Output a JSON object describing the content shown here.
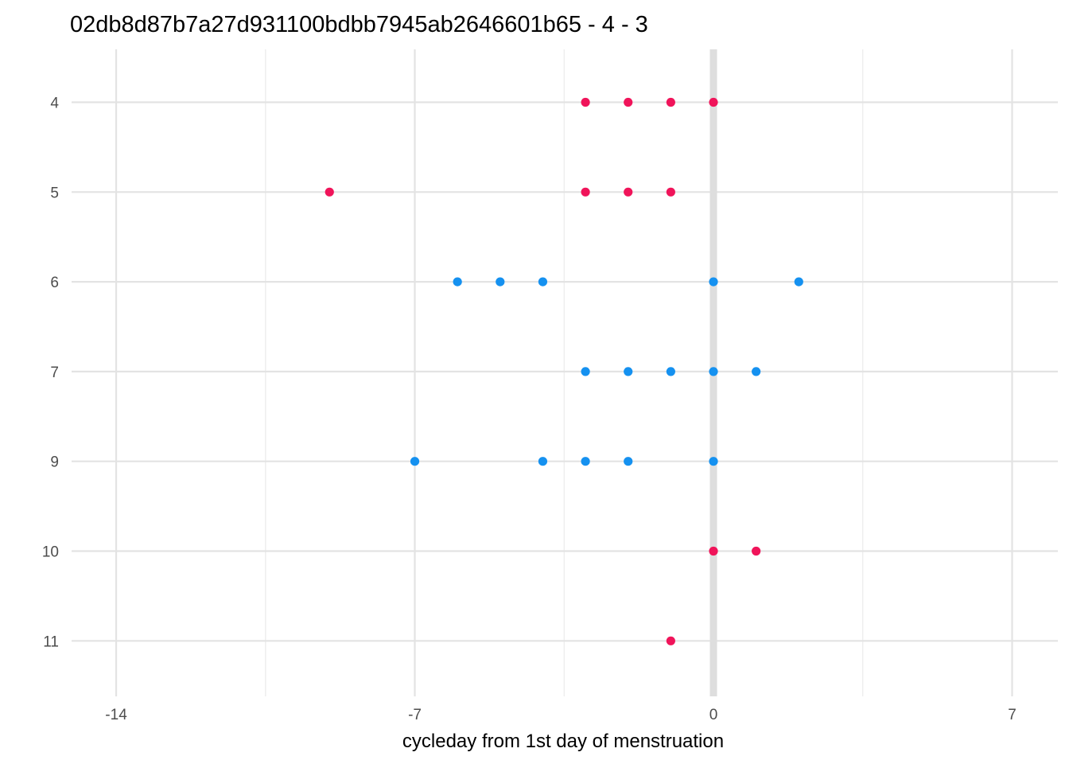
{
  "chart_data": {
    "type": "scatter",
    "title": "02db8d87b7a27d931100bdbb7945ab2646601b65 - 4 - 3",
    "xlabel": "cycleday from 1st day of menstruation",
    "ylabel": "",
    "xlim": [
      -14.5,
      8
    ],
    "x_ticks": [
      -14,
      -7,
      0,
      7
    ],
    "x_tick_labels": [
      "-14",
      "-7",
      "0",
      "7"
    ],
    "categories": [
      "4",
      "5",
      "6",
      "7",
      "9",
      "10",
      "11"
    ],
    "grid": true,
    "legend": "none",
    "reference_line_x": 0,
    "colors": {
      "pink": "#f0145a",
      "blue": "#1591f0"
    },
    "points": [
      {
        "x": -3,
        "y": "4",
        "color": "pink"
      },
      {
        "x": -2,
        "y": "4",
        "color": "pink"
      },
      {
        "x": -1,
        "y": "4",
        "color": "pink"
      },
      {
        "x": 0,
        "y": "4",
        "color": "pink"
      },
      {
        "x": -9,
        "y": "5",
        "color": "pink"
      },
      {
        "x": -3,
        "y": "5",
        "color": "pink"
      },
      {
        "x": -2,
        "y": "5",
        "color": "pink"
      },
      {
        "x": -1,
        "y": "5",
        "color": "pink"
      },
      {
        "x": -6,
        "y": "6",
        "color": "blue"
      },
      {
        "x": -5,
        "y": "6",
        "color": "blue"
      },
      {
        "x": -4,
        "y": "6",
        "color": "blue"
      },
      {
        "x": 0,
        "y": "6",
        "color": "blue"
      },
      {
        "x": 2,
        "y": "6",
        "color": "blue"
      },
      {
        "x": -3,
        "y": "7",
        "color": "blue"
      },
      {
        "x": -2,
        "y": "7",
        "color": "blue"
      },
      {
        "x": -1,
        "y": "7",
        "color": "blue"
      },
      {
        "x": 0,
        "y": "7",
        "color": "blue"
      },
      {
        "x": 1,
        "y": "7",
        "color": "blue"
      },
      {
        "x": -7,
        "y": "9",
        "color": "blue"
      },
      {
        "x": -4,
        "y": "9",
        "color": "blue"
      },
      {
        "x": -3,
        "y": "9",
        "color": "blue"
      },
      {
        "x": -2,
        "y": "9",
        "color": "blue"
      },
      {
        "x": 0,
        "y": "9",
        "color": "blue"
      },
      {
        "x": 0,
        "y": "10",
        "color": "pink"
      },
      {
        "x": 1,
        "y": "10",
        "color": "pink"
      },
      {
        "x": -1,
        "y": "11",
        "color": "pink"
      }
    ]
  }
}
